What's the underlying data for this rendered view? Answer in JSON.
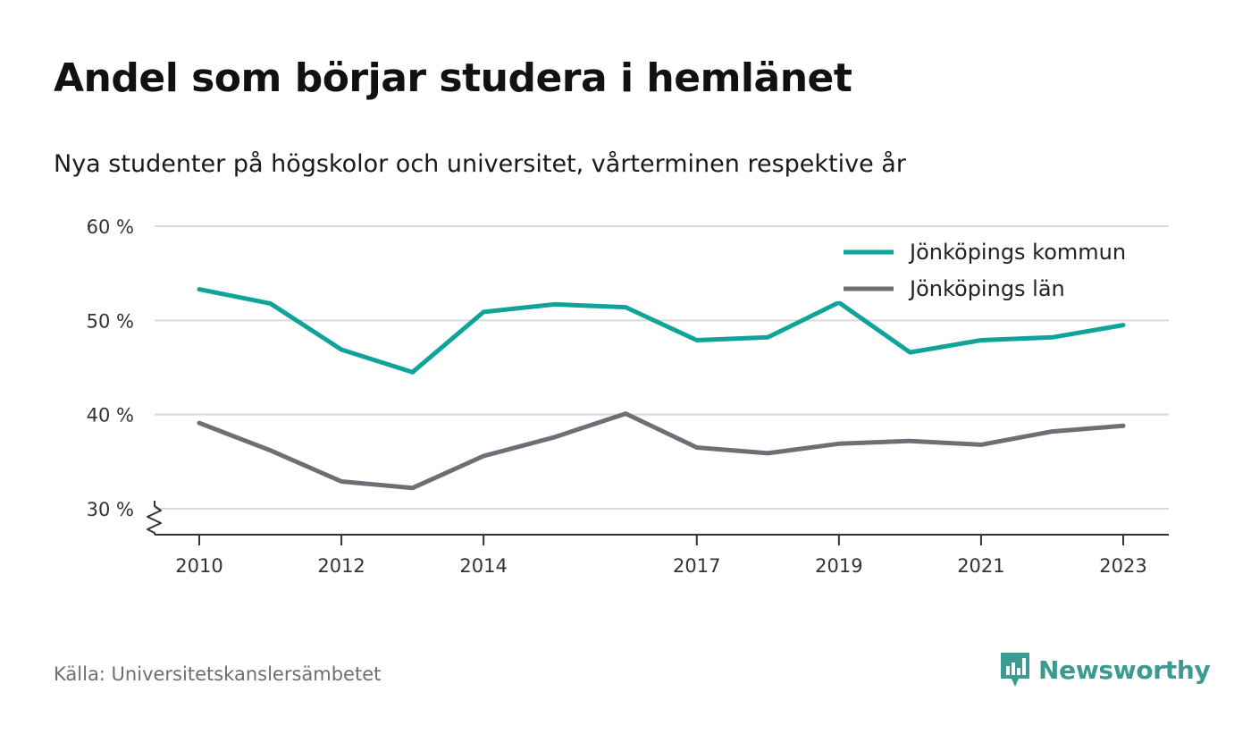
{
  "title": "Andel som börjar studera i hemlänet",
  "subtitle": "Nya studenter på högskolor och universitet, vårterminen respektive år",
  "source": "Källa: Universitetskanslersämbetet",
  "brand": {
    "name": "Newsworthy",
    "icon": "newsworthy-logo-icon",
    "color": "#3c9a92"
  },
  "chart_data": {
    "type": "line",
    "x": [
      2010,
      2011,
      2012,
      2013,
      2014,
      2015,
      2016,
      2017,
      2018,
      2019,
      2020,
      2021,
      2022,
      2023
    ],
    "x_tick_values": [
      2010,
      2012,
      2014,
      2017,
      2019,
      2021,
      2023
    ],
    "x_tick_labels": [
      "2010",
      "2012",
      "2014",
      "2017",
      "2019",
      "2021",
      "2023"
    ],
    "y_tick_values": [
      30,
      40,
      50,
      60
    ],
    "y_tick_labels": [
      "30 %",
      "40 %",
      "50 %",
      "60 %"
    ],
    "ylim": [
      27.3,
      60
    ],
    "y_axis_break": true,
    "grid": true,
    "legend_position": "top-right",
    "series": [
      {
        "name": "Jönköpings kommun",
        "color": "#0fa39a",
        "values": [
          53.3,
          51.8,
          46.9,
          44.5,
          50.9,
          51.7,
          51.4,
          47.9,
          48.2,
          51.9,
          46.6,
          47.9,
          48.2,
          49.5
        ]
      },
      {
        "name": "Jönköpings län",
        "color": "#6f6e76",
        "values": [
          39.1,
          36.2,
          32.9,
          32.2,
          35.6,
          37.6,
          40.1,
          36.5,
          35.9,
          36.9,
          37.2,
          36.8,
          38.2,
          38.8
        ]
      }
    ]
  }
}
